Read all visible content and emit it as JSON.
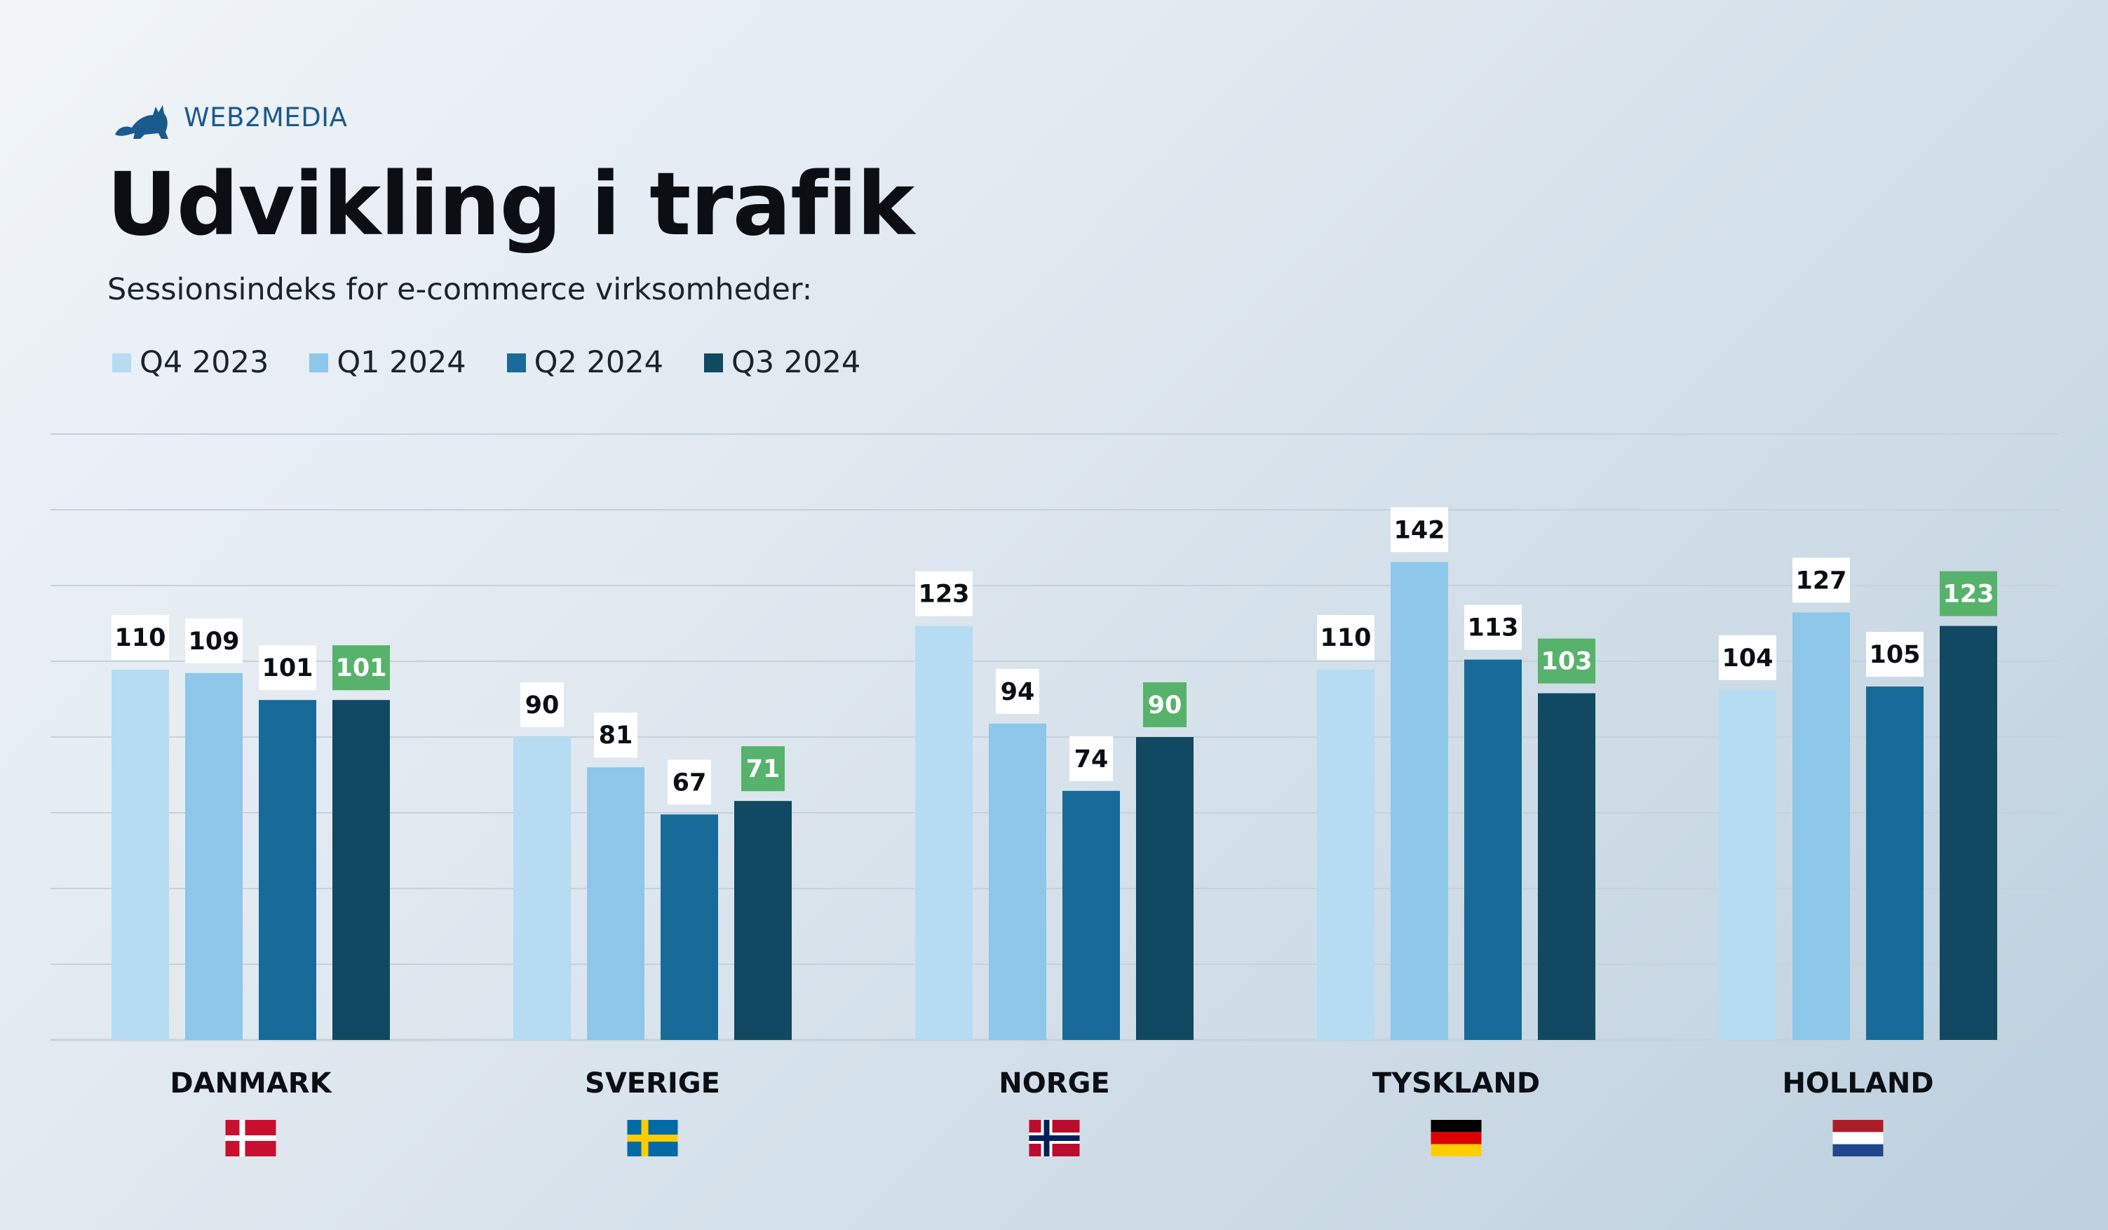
{
  "brand": {
    "name": "WEB2MEDIA",
    "logo_icon": "cat-icon"
  },
  "title": "Udvikling i trafik",
  "subtitle": "Sessionsindeks for e-commerce virksomheder:",
  "colors": {
    "Q4 2023": "#b5dcf2",
    "Q1 2024": "#8dc7ea",
    "Q2 2024": "#186a98",
    "Q3 2024": "#114862",
    "highlight_label": "#57b26c",
    "grid": "#c5d2dc"
  },
  "chart_data": {
    "type": "bar",
    "title": "Udvikling i trafik",
    "subtitle": "Sessionsindeks for e-commerce virksomheder:",
    "categories": [
      "DANMARK",
      "SVERIGE",
      "NORGE",
      "TYSKLAND",
      "HOLLAND"
    ],
    "series": [
      {
        "name": "Q4 2023",
        "values": [
          110,
          90,
          123,
          110,
          104
        ]
      },
      {
        "name": "Q1 2024",
        "values": [
          109,
          81,
          94,
          142,
          127
        ]
      },
      {
        "name": "Q2 2024",
        "values": [
          101,
          67,
          74,
          113,
          105
        ]
      },
      {
        "name": "Q3 2024",
        "values": [
          101,
          71,
          90,
          103,
          123
        ]
      }
    ],
    "highlighted_series": "Q3 2024",
    "ylim": [
      0,
      160
    ],
    "grid": true,
    "legend_position": "top-left",
    "flags": [
      "denmark-flag",
      "sweden-flag",
      "norway-flag",
      "germany-flag",
      "netherlands-flag"
    ]
  }
}
